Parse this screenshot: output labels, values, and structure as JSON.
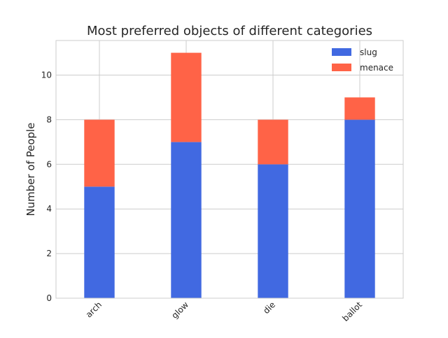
{
  "chart_data": {
    "type": "bar",
    "stacked": true,
    "title": "Most preferred objects of different categories",
    "xlabel": "",
    "ylabel": "Number of People",
    "categories": [
      "arch",
      "glow",
      "die",
      "ballot"
    ],
    "series": [
      {
        "name": "slug",
        "values": [
          5,
          7,
          6,
          8
        ],
        "color": "#4169e1"
      },
      {
        "name": "menace",
        "values": [
          3,
          4,
          2,
          1
        ],
        "color": "#ff6347"
      }
    ],
    "ylim": [
      0,
      11.55
    ],
    "yticks": [
      0,
      2,
      4,
      6,
      8,
      10
    ],
    "grid": true,
    "legend_position": "top-right",
    "xtick_rotation": 45
  }
}
